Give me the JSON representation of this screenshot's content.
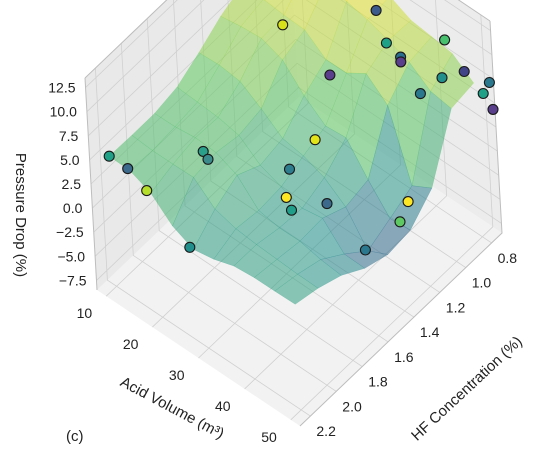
{
  "chart_data": {
    "type": "scatter",
    "projection": "3d",
    "panel_label": "(c)",
    "xlabel": "Acid Volume (m³)",
    "ylabel": "HF Concentration (%)",
    "zlabel": "Pressure Drop (%)",
    "x_ticks": [
      "10",
      "20",
      "30",
      "40",
      "50"
    ],
    "y_ticks": [
      "0.8",
      "1.0",
      "1.2",
      "1.4",
      "1.6",
      "1.8",
      "2.0",
      "2.2"
    ],
    "z_ticks": [
      "12.5",
      "10.0",
      "7.5",
      "5.0",
      "2.5",
      "0.0",
      "−2.5",
      "−5.0",
      "−7.5"
    ],
    "xlim": [
      8,
      52
    ],
    "ylim": [
      0.72,
      2.28
    ],
    "zlim": [
      -8.5,
      13.5
    ],
    "grid": true,
    "legend": "none",
    "colormap": "viridis",
    "surface": "semi-transparent interpolated surface through the points",
    "points": [
      {
        "x": 10,
        "y": 2.2,
        "z": 5.0,
        "c": "#1fa187"
      },
      {
        "x": 14,
        "y": 2.2,
        "z": 5.0,
        "c": "#3b6a8c"
      },
      {
        "x": 20,
        "y": 1.2,
        "z": 9.0,
        "c": "#d8e219"
      },
      {
        "x": 18,
        "y": 2.2,
        "z": 4.0,
        "c": "#b5de2b"
      },
      {
        "x": 22,
        "y": 1.9,
        "z": 5.5,
        "c": "#2a9f8a"
      },
      {
        "x": 23,
        "y": 1.9,
        "z": 5.0,
        "c": "#3b8a8c"
      },
      {
        "x": 27,
        "y": 2.2,
        "z": 1.0,
        "c": "#21908d"
      },
      {
        "x": 32,
        "y": 1.4,
        "z": 3.5,
        "c": "#e3e418"
      },
      {
        "x": 32,
        "y": 1.6,
        "z": 3.0,
        "c": "#2e7d8e"
      },
      {
        "x": 34,
        "y": 1.7,
        "z": 2.0,
        "c": "#fde725"
      },
      {
        "x": 35,
        "y": 1.7,
        "z": 1.0,
        "c": "#1f9e89"
      },
      {
        "x": 40,
        "y": 1.6,
        "z": 2.0,
        "c": "#3b6a8c"
      },
      {
        "x": 45,
        "y": 1.5,
        "z": -2.5,
        "c": "#2a788e"
      },
      {
        "x": 46,
        "y": 1.2,
        "z": -1.0,
        "c": "#fde725"
      },
      {
        "x": 47,
        "y": 1.3,
        "z": -1.5,
        "c": "#5ec962"
      },
      {
        "x": 20,
        "y": 0.8,
        "z": 12.5,
        "c": "#8fd5c8"
      },
      {
        "x": 20,
        "y": 0.8,
        "z": 11.0,
        "c": "#b0a0c8"
      },
      {
        "x": 24,
        "y": 0.8,
        "z": 13.0,
        "c": "#c8a8c8"
      },
      {
        "x": 30,
        "y": 0.9,
        "z": 11.5,
        "c": "#2fb47c"
      },
      {
        "x": 32,
        "y": 0.9,
        "z": 10.5,
        "c": "#3b5b8c"
      },
      {
        "x": 30,
        "y": 1.2,
        "z": 7.0,
        "c": "#5a3f8c"
      },
      {
        "x": 37,
        "y": 1.0,
        "z": 10.0,
        "c": "#1fa187"
      },
      {
        "x": 40,
        "y": 1.0,
        "z": 9.5,
        "c": "#2a6f8e"
      },
      {
        "x": 40,
        "y": 1.0,
        "z": 9.0,
        "c": "#5a3f8c"
      },
      {
        "x": 44,
        "y": 0.8,
        "z": 10.0,
        "c": "#47c16e"
      },
      {
        "x": 44,
        "y": 1.0,
        "z": 7.0,
        "c": "#2a788e"
      },
      {
        "x": 46,
        "y": 0.9,
        "z": 8.0,
        "c": "#21908d"
      },
      {
        "x": 48,
        "y": 0.8,
        "z": 8.0,
        "c": "#414487"
      },
      {
        "x": 52,
        "y": 0.8,
        "z": 7.0,
        "c": "#1fa187"
      },
      {
        "x": 52,
        "y": 0.75,
        "z": 7.5,
        "c": "#2a788e"
      },
      {
        "x": 54,
        "y": 0.8,
        "z": 6.0,
        "c": "#5a3f8c"
      }
    ]
  }
}
